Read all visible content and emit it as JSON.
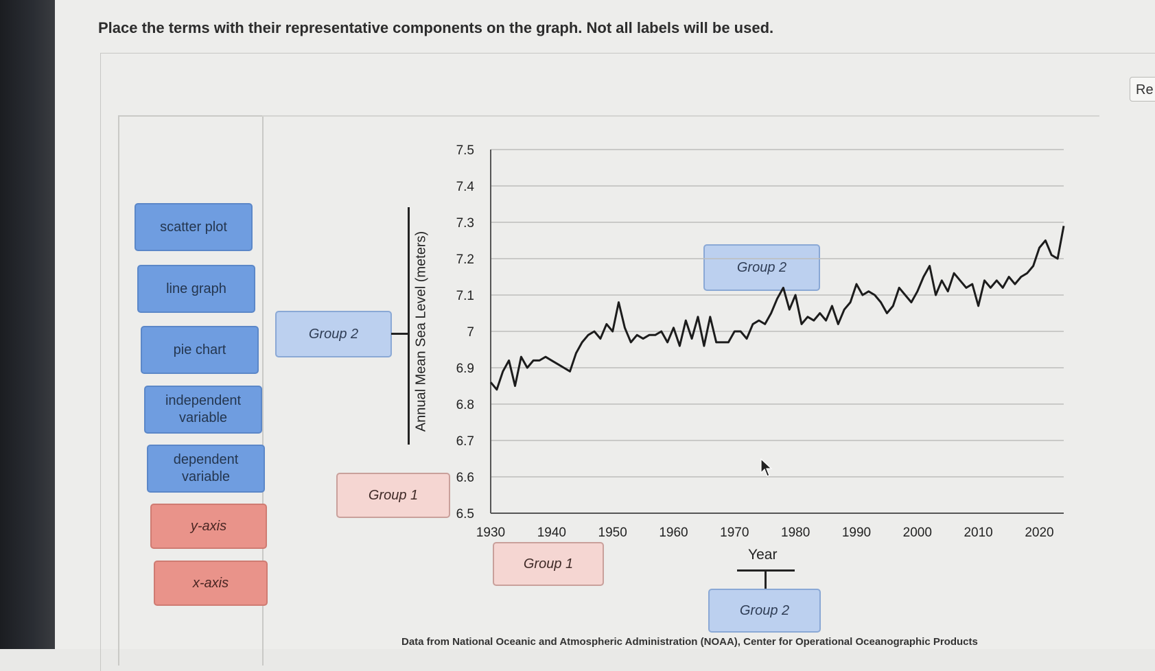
{
  "instructions": "Place the terms with their representative components on the graph. Not all labels will be used.",
  "reset_label": "Re",
  "terms": [
    {
      "label": "scatter plot",
      "color": "blue"
    },
    {
      "label": "line graph",
      "color": "blue"
    },
    {
      "label": "pie chart",
      "color": "blue"
    },
    {
      "label": "independent variable",
      "color": "blue"
    },
    {
      "label": "dependent variable",
      "color": "blue"
    },
    {
      "label": "y-axis",
      "color": "red"
    },
    {
      "label": "x-axis",
      "color": "red"
    }
  ],
  "drop_zones": {
    "y_axis_group2": "Group 2",
    "y_axis_group1": "Group 1",
    "graph_group2": "Group 2",
    "x_axis_group1": "Group 1",
    "x_axis_group2": "Group 2"
  },
  "colors": {
    "blue_tile": "#6f9de0",
    "red_tile": "#e9938a",
    "blue_zone": "#bcd0ef",
    "red_zone": "#f5d6d2"
  },
  "source_note": "Data from National Oceanic and Atmospheric Administration (NOAA), Center for Operational Oceanographic Products",
  "chart_data": {
    "type": "line",
    "title": "",
    "xlabel": "Year",
    "ylabel": "Annual Mean Sea Level (meters)",
    "xlim": [
      1930,
      2024
    ],
    "ylim": [
      6.5,
      7.5
    ],
    "xticks": [
      "1930",
      "1940",
      "1950",
      "1960",
      "1970",
      "1980",
      "1990",
      "2000",
      "2010",
      "2020"
    ],
    "yticks": [
      "7.5",
      "7.4",
      "7.3",
      "7.2",
      "7.1",
      "7",
      "6.9",
      "6.8",
      "6.7",
      "6.6",
      "6.5"
    ],
    "grid": true,
    "series": [
      {
        "name": "Annual Mean Sea Level",
        "x": [
          1930,
          1931,
          1932,
          1933,
          1934,
          1935,
          1936,
          1937,
          1938,
          1939,
          1940,
          1941,
          1942,
          1943,
          1944,
          1945,
          1946,
          1947,
          1948,
          1949,
          1950,
          1951,
          1952,
          1953,
          1954,
          1955,
          1956,
          1957,
          1958,
          1959,
          1960,
          1961,
          1962,
          1963,
          1964,
          1965,
          1966,
          1967,
          1968,
          1969,
          1970,
          1971,
          1972,
          1973,
          1974,
          1975,
          1976,
          1977,
          1978,
          1979,
          1980,
          1981,
          1982,
          1983,
          1984,
          1985,
          1986,
          1987,
          1988,
          1989,
          1990,
          1991,
          1992,
          1993,
          1994,
          1995,
          1996,
          1997,
          1998,
          1999,
          2000,
          2001,
          2002,
          2003,
          2004,
          2005,
          2006,
          2007,
          2008,
          2009,
          2010,
          2011,
          2012,
          2013,
          2014,
          2015,
          2016,
          2017,
          2018,
          2019,
          2020,
          2021,
          2022,
          2023,
          2024
        ],
        "values": [
          6.86,
          6.84,
          6.89,
          6.92,
          6.85,
          6.93,
          6.9,
          6.92,
          6.92,
          6.93,
          6.92,
          6.91,
          6.9,
          6.89,
          6.94,
          6.97,
          6.99,
          7.0,
          6.98,
          7.02,
          7.0,
          7.08,
          7.01,
          6.97,
          6.99,
          6.98,
          6.99,
          6.99,
          7.0,
          6.97,
          7.01,
          6.96,
          7.03,
          6.98,
          7.04,
          6.96,
          7.04,
          6.97,
          6.97,
          6.97,
          7.0,
          7.0,
          6.98,
          7.02,
          7.03,
          7.02,
          7.05,
          7.09,
          7.12,
          7.06,
          7.1,
          7.02,
          7.04,
          7.03,
          7.05,
          7.03,
          7.07,
          7.02,
          7.06,
          7.08,
          7.13,
          7.1,
          7.11,
          7.1,
          7.08,
          7.05,
          7.07,
          7.12,
          7.1,
          7.08,
          7.11,
          7.15,
          7.18,
          7.1,
          7.14,
          7.11,
          7.16,
          7.14,
          7.12,
          7.13,
          7.07,
          7.14,
          7.12,
          7.14,
          7.12,
          7.15,
          7.13,
          7.15,
          7.16,
          7.18,
          7.23,
          7.25,
          7.21,
          7.2,
          7.29
        ]
      }
    ]
  }
}
